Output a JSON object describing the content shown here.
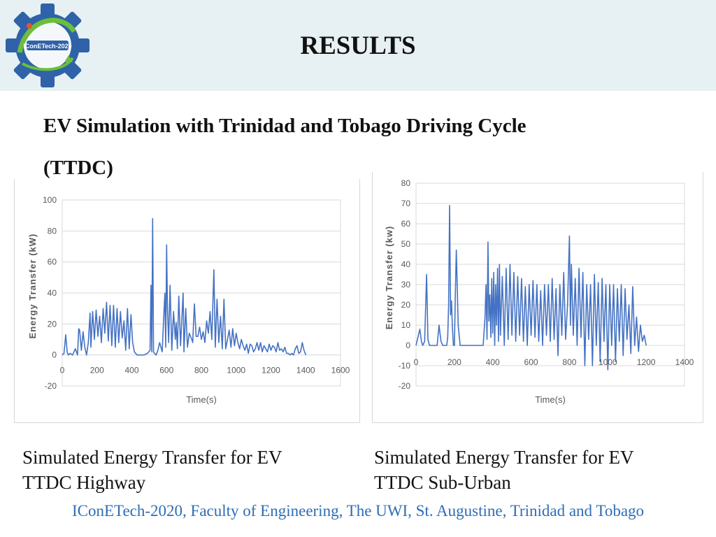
{
  "header": {
    "title": "RESULTS",
    "logo_text": "IConETech-2020"
  },
  "subtitle": {
    "line1": "EV Simulation with Trinidad and Tobago Driving Cycle",
    "line2": "(TTDC)"
  },
  "captions": [
    {
      "line1": "Simulated Energy Transfer for EV",
      "line2": "TTDC Highway"
    },
    {
      "line1": "Simulated Energy Transfer for EV",
      "line2": "TTDC Sub-Urban"
    }
  ],
  "footer": {
    "text": "IConETech-2020, Faculty of Engineering, The UWI, St. Augustine, Trinidad and Tobago"
  },
  "colors": {
    "header_bg": "#e7f0f2",
    "series": "#4472c4",
    "footer_text": "#2e6db4"
  },
  "chart_data": [
    {
      "type": "line",
      "xlabel": "Time(s)",
      "ylabel": "Energy Transfer (kW)",
      "xlim": [
        0,
        1600
      ],
      "ylim": [
        -20,
        100
      ],
      "x_ticks": [
        0,
        200,
        400,
        600,
        800,
        1000,
        1200,
        1400,
        1600
      ],
      "y_ticks": [
        -20,
        0,
        20,
        40,
        60,
        80,
        100
      ],
      "grid": "horizontal",
      "series": [
        {
          "x": [
            0,
            10,
            20,
            28,
            35,
            45,
            60,
            75,
            88,
            95,
            100,
            110,
            120,
            130,
            140,
            150,
            160,
            165,
            175,
            185,
            195,
            205,
            215,
            225,
            235,
            245,
            255,
            265,
            275,
            285,
            295,
            305,
            315,
            325,
            335,
            345,
            355,
            365,
            375,
            385,
            395,
            405,
            415,
            430,
            450,
            470,
            490,
            505,
            510,
            515,
            520,
            525,
            530,
            540,
            550,
            560,
            575,
            580,
            590,
            595,
            600,
            605,
            612,
            620,
            630,
            640,
            650,
            655,
            662,
            670,
            680,
            695,
            700,
            710,
            720,
            730,
            745,
            750,
            760,
            770,
            780,
            790,
            800,
            810,
            820,
            830,
            840,
            850,
            860,
            872,
            880,
            890,
            900,
            910,
            920,
            930,
            940,
            950,
            960,
            970,
            980,
            990,
            1000,
            1010,
            1020,
            1030,
            1040,
            1050,
            1060,
            1070,
            1080,
            1090,
            1100,
            1110,
            1120,
            1130,
            1140,
            1150,
            1160,
            1170,
            1180,
            1190,
            1200,
            1210,
            1220,
            1230,
            1240,
            1250,
            1260,
            1270,
            1280,
            1290,
            1300,
            1310,
            1320,
            1330,
            1340,
            1350,
            1360,
            1370,
            1380,
            1390,
            1400
          ],
          "y": [
            0,
            1,
            13,
            2,
            0,
            1,
            0,
            4,
            0,
            17,
            16,
            3,
            15,
            5,
            0,
            8,
            27,
            5,
            28,
            10,
            29,
            12,
            25,
            8,
            30,
            14,
            34,
            9,
            32,
            6,
            32,
            5,
            30,
            8,
            28,
            11,
            22,
            3,
            30,
            4,
            26,
            8,
            2,
            0,
            0,
            0,
            1,
            3,
            45,
            2,
            88,
            2,
            1,
            0,
            3,
            8,
            2,
            16,
            40,
            5,
            71,
            30,
            8,
            45,
            3,
            28,
            10,
            21,
            4,
            38,
            6,
            40,
            2,
            30,
            5,
            14,
            10,
            8,
            33,
            12,
            12,
            18,
            10,
            15,
            8,
            22,
            14,
            28,
            10,
            55,
            5,
            36,
            8,
            25,
            4,
            36,
            4,
            10,
            16,
            5,
            17,
            6,
            14,
            8,
            4,
            10,
            6,
            3,
            7,
            1,
            7,
            6,
            2,
            4,
            8,
            3,
            8,
            2,
            6,
            4,
            2,
            7,
            3,
            6,
            5,
            2,
            8,
            3,
            4,
            2,
            5,
            1,
            1,
            0,
            1,
            0,
            4,
            6,
            1,
            2,
            8,
            3,
            0
          ]
        }
      ]
    },
    {
      "type": "line",
      "xlabel": "Time(s)",
      "ylabel": "Energy Transfer (kw)",
      "xlim": [
        0,
        1400
      ],
      "ylim": [
        -20,
        80
      ],
      "x_ticks": [
        0,
        200,
        400,
        600,
        800,
        1000,
        1200,
        1400
      ],
      "y_ticks": [
        -20,
        -10,
        0,
        10,
        20,
        30,
        40,
        50,
        60,
        70,
        80
      ],
      "grid": "horizontal",
      "series": [
        {
          "x": [
            0,
            10,
            20,
            28,
            35,
            45,
            55,
            62,
            70,
            80,
            90,
            100,
            110,
            120,
            130,
            140,
            150,
            160,
            165,
            170,
            175,
            180,
            185,
            190,
            195,
            200,
            205,
            210,
            220,
            230,
            240,
            245,
            250,
            255,
            260,
            270,
            290,
            320,
            350,
            360,
            365,
            370,
            375,
            380,
            385,
            390,
            395,
            400,
            405,
            410,
            415,
            420,
            425,
            430,
            435,
            440,
            450,
            460,
            470,
            480,
            490,
            500,
            510,
            520,
            530,
            540,
            550,
            560,
            570,
            580,
            590,
            600,
            610,
            620,
            630,
            640,
            650,
            660,
            670,
            680,
            690,
            700,
            710,
            720,
            730,
            740,
            750,
            760,
            770,
            780,
            790,
            800,
            805,
            810,
            820,
            830,
            840,
            850,
            860,
            870,
            880,
            890,
            900,
            910,
            920,
            930,
            940,
            950,
            960,
            970,
            980,
            990,
            1000,
            1010,
            1020,
            1030,
            1040,
            1050,
            1060,
            1070,
            1080,
            1090,
            1100,
            1110,
            1120,
            1130,
            1140,
            1150,
            1160,
            1170,
            1180,
            1190,
            1200
          ],
          "y": [
            0,
            4,
            8,
            2,
            0,
            2,
            35,
            3,
            0,
            0,
            0,
            0,
            0,
            10,
            2,
            0,
            0,
            0,
            4,
            20,
            69,
            15,
            22,
            8,
            0,
            0,
            25,
            47,
            10,
            0,
            0,
            0,
            0,
            0,
            0,
            0,
            0,
            0,
            0,
            14,
            30,
            3,
            51,
            12,
            25,
            4,
            33,
            6,
            36,
            0,
            30,
            10,
            38,
            2,
            40,
            5,
            34,
            0,
            38,
            3,
            40,
            5,
            36,
            2,
            34,
            5,
            33,
            2,
            29,
            0,
            30,
            5,
            32,
            4,
            30,
            2,
            27,
            0,
            30,
            5,
            30,
            2,
            33,
            3,
            28,
            -5,
            30,
            5,
            36,
            3,
            20,
            54,
            10,
            40,
            5,
            33,
            0,
            38,
            4,
            36,
            -10,
            30,
            3,
            30,
            -10,
            35,
            0,
            31,
            -8,
            33,
            2,
            30,
            -12,
            30,
            0,
            30,
            -8,
            28,
            2,
            30,
            -5,
            28,
            3,
            20,
            -4,
            29,
            0,
            14,
            -3,
            10,
            2,
            5,
            0
          ]
        }
      ]
    }
  ]
}
